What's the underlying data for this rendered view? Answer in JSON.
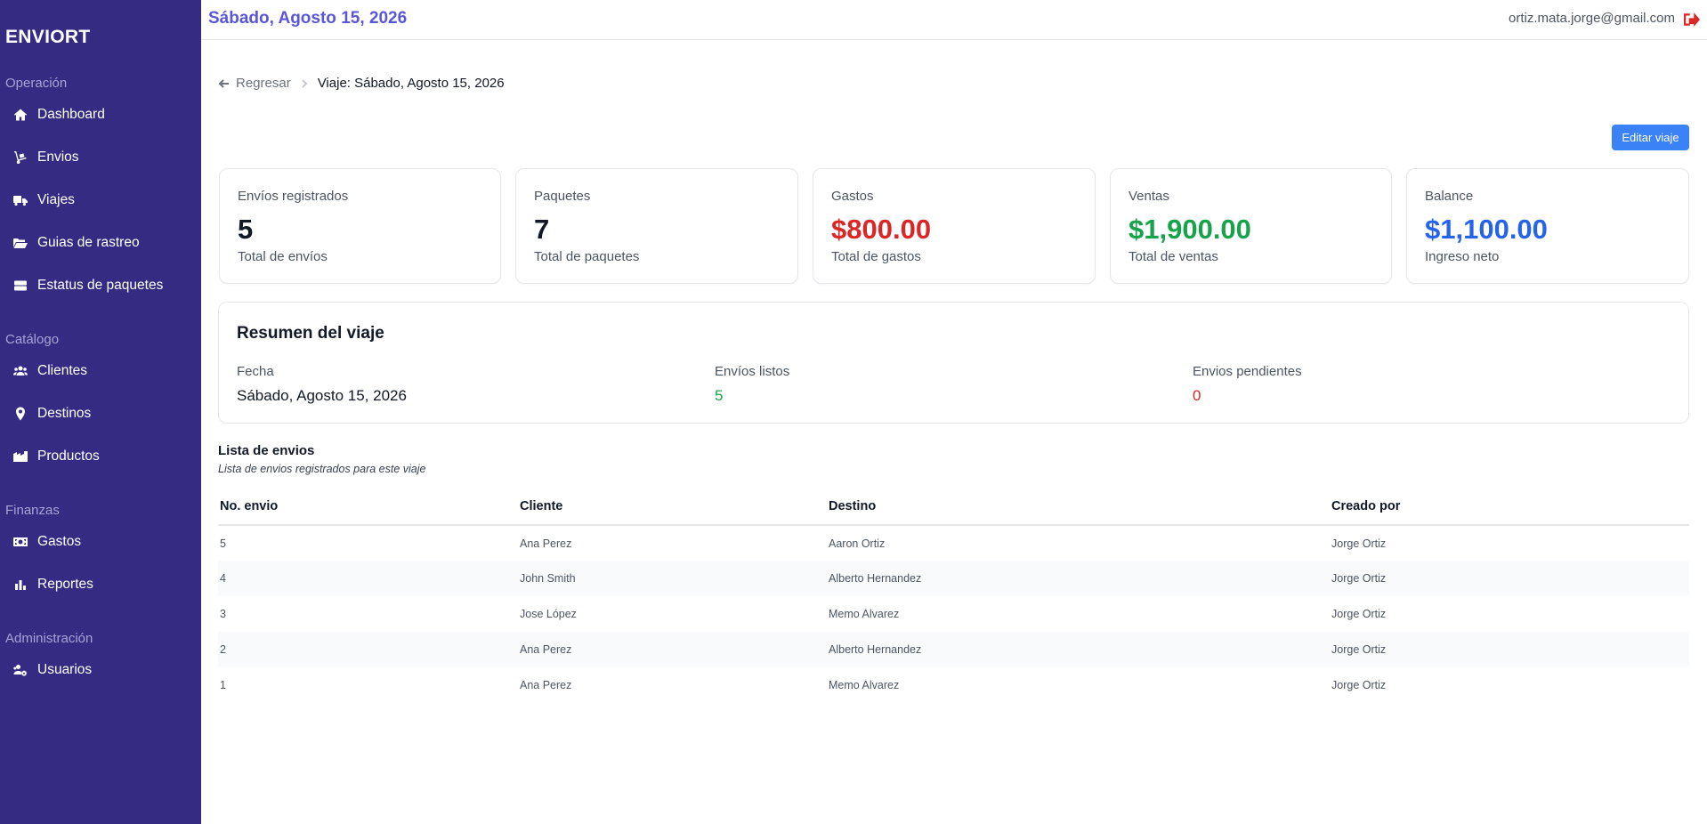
{
  "sidebar": {
    "brand": "ENVIORT",
    "sections": {
      "operacion": "Operación",
      "catalogo": "Catálogo",
      "finanzas": "Finanzas",
      "administracion": "Administración"
    },
    "items": {
      "dashboard": {
        "label": "Dashboard",
        "icon": "home-icon"
      },
      "envios": {
        "label": "Envios",
        "icon": "dolly-icon"
      },
      "viajes": {
        "label": "Viajes",
        "icon": "truck-icon"
      },
      "guias": {
        "label": "Guias de rastreo",
        "icon": "folder-open-icon"
      },
      "estatus": {
        "label": "Estatus de paquetes",
        "icon": "server-icon"
      },
      "clientes": {
        "label": "Clientes",
        "icon": "users-icon"
      },
      "destinos": {
        "label": "Destinos",
        "icon": "map-marker-icon"
      },
      "productos": {
        "label": "Productos",
        "icon": "warehouse-icon"
      },
      "gastos": {
        "label": "Gastos",
        "icon": "money-bill-icon"
      },
      "reportes": {
        "label": "Reportes",
        "icon": "bar-chart-icon"
      },
      "usuarios": {
        "label": "Usuarios",
        "icon": "users-cog-icon"
      }
    }
  },
  "header": {
    "date": "Sábado, Agosto 15, 2026",
    "email": "ortiz.mata.jorge@gmail.com",
    "logout_icon": "sign-out-icon"
  },
  "breadcrumb": {
    "back": "Regresar",
    "current": "Viaje: Sábado, Agosto 15, 2026"
  },
  "edit_button": "Editar viaje",
  "stats": [
    {
      "label": "Envíos registrados",
      "value": "5",
      "sub": "Total de envíos",
      "color": "#111827"
    },
    {
      "label": "Paquetes",
      "value": "7",
      "sub": "Total de paquetes",
      "color": "#111827"
    },
    {
      "label": "Gastos",
      "value": "$800.00",
      "sub": "Total de gastos",
      "color": "#dc2626"
    },
    {
      "label": "Ventas",
      "value": "$1,900.00",
      "sub": "Total de ventas",
      "color": "#16a34a"
    },
    {
      "label": "Balance",
      "value": "$1,100.00",
      "sub": "Ingreso neto",
      "color": "#2563eb"
    }
  ],
  "summary": {
    "title": "Resumen del viaje",
    "fecha_label": "Fecha",
    "fecha_value": "Sábado, Agosto 15, 2026",
    "listos_label": "Envíos listos",
    "listos_value": "5",
    "pendientes_label": "Envios pendientes",
    "pendientes_value": "0",
    "colors": {
      "listos": "#16a34a",
      "pendientes": "#dc2626"
    }
  },
  "list": {
    "title": "Lista de envios",
    "subtitle": "Lista de envios registrados para este viaje",
    "columns": [
      "No. envio",
      "Cliente",
      "Destino",
      "Creado por"
    ],
    "rows": [
      [
        "5",
        "Ana Perez",
        "Aaron Ortiz",
        "Jorge Ortiz"
      ],
      [
        "4",
        "John Smith",
        "Alberto Hernandez",
        "Jorge Ortiz"
      ],
      [
        "3",
        "Jose López",
        "Memo Alvarez",
        "Jorge Ortiz"
      ],
      [
        "2",
        "Ana Perez",
        "Alberto Hernandez",
        "Jorge Ortiz"
      ],
      [
        "1",
        "Ana Perez",
        "Memo Alvarez",
        "Jorge Ortiz"
      ]
    ]
  }
}
